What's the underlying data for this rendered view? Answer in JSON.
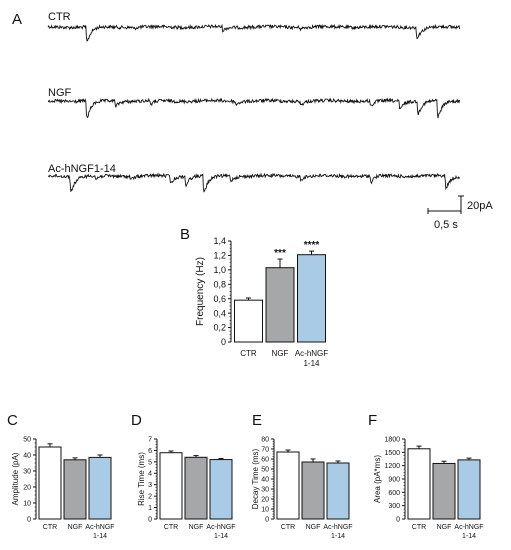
{
  "panel_letters": {
    "a": "A",
    "b": "B",
    "c": "C",
    "d": "D",
    "e": "E",
    "f": "F"
  },
  "colors": {
    "CTR": "#ffffff",
    "NGF": "#a5a7a9",
    "Ac-hNGF1-14": "#a9cbe6",
    "stroke": "#111111"
  },
  "panel_a": {
    "traces": [
      {
        "label": "CTR"
      },
      {
        "label": "NGF"
      },
      {
        "label": "Ac-hNGF1-14"
      }
    ],
    "scale_bar": {
      "current": "20pA",
      "time": "0,5 s"
    }
  },
  "chart_data": [
    {
      "panel": "B",
      "type": "bar",
      "categories": [
        "CTR",
        "NGF",
        "Ac-hNGF\n1-14"
      ],
      "values": [
        0.58,
        1.03,
        1.21
      ],
      "errors": [
        0.03,
        0.12,
        0.05
      ],
      "significance": [
        "",
        "***",
        "****"
      ],
      "ylabel": "Frequency (Hz)",
      "ylim": [
        0,
        1.4
      ],
      "yticks": [
        "0",
        "0,2",
        "0,4",
        "0,6",
        "0,8",
        "1,0",
        "1,2",
        "1,4"
      ],
      "grid": false
    },
    {
      "panel": "C",
      "type": "bar",
      "categories": [
        "CTR",
        "NGF",
        "Ac-hNGF\n1-14"
      ],
      "values": [
        45,
        37,
        38.5
      ],
      "errors": [
        2,
        1.2,
        1.5
      ],
      "ylabel": "Amplitude (pA)",
      "ylim": [
        0,
        50
      ],
      "yticks": [
        "0",
        "10",
        "20",
        "30",
        "40",
        "50"
      ],
      "grid": false
    },
    {
      "panel": "D",
      "type": "bar",
      "categories": [
        "CTR",
        "NGF",
        "Ac-hNGF\n1-14"
      ],
      "values": [
        5.8,
        5.4,
        5.2
      ],
      "errors": [
        0.15,
        0.15,
        0.1
      ],
      "ylabel": "Rise Time (ms)",
      "ylim": [
        0,
        7
      ],
      "yticks": [
        "0",
        "1",
        "2",
        "3",
        "4",
        "5",
        "6",
        "7"
      ],
      "grid": false
    },
    {
      "panel": "E",
      "type": "bar",
      "categories": [
        "CTR",
        "NGF",
        "Ac-hNGF\n1-14"
      ],
      "values": [
        67,
        57,
        56
      ],
      "errors": [
        2,
        3,
        2
      ],
      "ylabel": "Decay Time (ms)",
      "ylim": [
        0,
        80
      ],
      "yticks": [
        "0",
        "10",
        "20",
        "30",
        "40",
        "50",
        "60",
        "70",
        "80"
      ],
      "grid": false
    },
    {
      "panel": "F",
      "type": "bar",
      "categories": [
        "CTR",
        "NGF",
        "Ac-hNGF\n1-14"
      ],
      "values": [
        1580,
        1250,
        1330
      ],
      "errors": [
        60,
        50,
        40
      ],
      "ylabel": "Area (pA*ms)",
      "ylim": [
        0,
        1800
      ],
      "yticks": [
        "0",
        "300",
        "600",
        "900",
        "1200",
        "1500",
        "1800"
      ],
      "grid": false
    }
  ]
}
